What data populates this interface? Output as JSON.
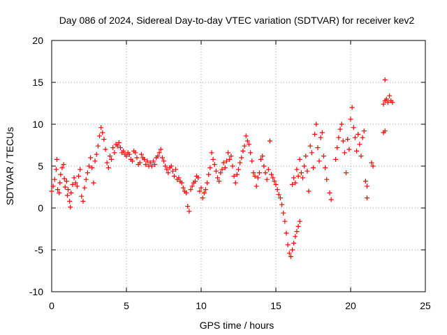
{
  "chart_data": {
    "type": "scatter",
    "title": "Day 086 of 2024, Sidereal Day-to-day VTEC variation (SDTVAR) for receiver kev2",
    "xlabel": "GPS time / hours",
    "ylabel": "SDTVAR / TECUs",
    "xlim": [
      0,
      25
    ],
    "ylim": [
      -10,
      20
    ],
    "x_ticks": [
      0,
      5,
      10,
      15,
      20,
      25
    ],
    "y_ticks": [
      -10,
      -5,
      0,
      5,
      10,
      15,
      20
    ],
    "x_tick_labels": [
      "0",
      "5",
      "10",
      "15",
      "20",
      "25"
    ],
    "y_tick_labels": [
      "-10",
      "-5",
      "0",
      "5",
      "10",
      "15",
      "20"
    ],
    "grid": true,
    "marker": "+",
    "series": [
      {
        "name": "SDTVAR",
        "color": "#ff0000",
        "points": [
          [
            0.0,
            2.0
          ],
          [
            0.1,
            2.6
          ],
          [
            0.2,
            3.4
          ],
          [
            0.3,
            4.6
          ],
          [
            0.35,
            5.8
          ],
          [
            0.4,
            2.2
          ],
          [
            0.5,
            1.8
          ],
          [
            0.55,
            3.0
          ],
          [
            0.6,
            4.0
          ],
          [
            0.7,
            4.8
          ],
          [
            0.8,
            5.2
          ],
          [
            0.85,
            3.5
          ],
          [
            0.9,
            2.5
          ],
          [
            1.0,
            3.2
          ],
          [
            1.05,
            1.5
          ],
          [
            1.1,
            2.2
          ],
          [
            1.2,
            0.8
          ],
          [
            1.25,
            0.1
          ],
          [
            1.3,
            1.8
          ],
          [
            1.4,
            2.8
          ],
          [
            1.5,
            3.6
          ],
          [
            1.6,
            3.0
          ],
          [
            1.7,
            2.6
          ],
          [
            1.8,
            3.8
          ],
          [
            1.9,
            4.6
          ],
          [
            2.0,
            1.4
          ],
          [
            2.1,
            0.8
          ],
          [
            2.2,
            2.4
          ],
          [
            2.3,
            3.4
          ],
          [
            2.4,
            4.2
          ],
          [
            2.5,
            5.0
          ],
          [
            2.6,
            6.0
          ],
          [
            2.7,
            4.8
          ],
          [
            2.8,
            3.0
          ],
          [
            2.9,
            5.6
          ],
          [
            3.0,
            6.4
          ],
          [
            3.1,
            7.4
          ],
          [
            3.2,
            8.6
          ],
          [
            3.3,
            9.6
          ],
          [
            3.4,
            9.0
          ],
          [
            3.5,
            8.2
          ],
          [
            3.6,
            7.0
          ],
          [
            3.7,
            5.4
          ],
          [
            3.8,
            4.8
          ],
          [
            3.9,
            6.2
          ],
          [
            4.0,
            5.8
          ],
          [
            4.1,
            7.2
          ],
          [
            4.2,
            6.6
          ],
          [
            4.3,
            7.6
          ],
          [
            4.4,
            7.4
          ],
          [
            4.5,
            7.8
          ],
          [
            4.6,
            7.2
          ],
          [
            4.7,
            6.6
          ],
          [
            4.8,
            6.8
          ],
          [
            4.9,
            6.4
          ],
          [
            5.0,
            6.2
          ],
          [
            5.1,
            6.6
          ],
          [
            5.2,
            6.4
          ],
          [
            5.3,
            5.8
          ],
          [
            5.4,
            5.6
          ],
          [
            5.5,
            6.8
          ],
          [
            5.6,
            6.6
          ],
          [
            5.7,
            6.0
          ],
          [
            5.8,
            5.2
          ],
          [
            5.9,
            5.4
          ],
          [
            6.0,
            6.4
          ],
          [
            6.1,
            6.0
          ],
          [
            6.2,
            5.8
          ],
          [
            6.3,
            5.2
          ],
          [
            6.4,
            5.6
          ],
          [
            6.5,
            5.0
          ],
          [
            6.6,
            5.4
          ],
          [
            6.7,
            5.0
          ],
          [
            6.8,
            5.6
          ],
          [
            6.9,
            5.2
          ],
          [
            7.0,
            6.0
          ],
          [
            7.1,
            6.2
          ],
          [
            7.2,
            6.6
          ],
          [
            7.3,
            7.0
          ],
          [
            7.4,
            6.0
          ],
          [
            7.5,
            5.6
          ],
          [
            7.6,
            5.0
          ],
          [
            7.7,
            4.6
          ],
          [
            7.8,
            4.2
          ],
          [
            7.9,
            4.8
          ],
          [
            8.0,
            5.0
          ],
          [
            8.1,
            4.4
          ],
          [
            8.2,
            3.8
          ],
          [
            8.3,
            4.6
          ],
          [
            8.4,
            3.4
          ],
          [
            8.5,
            3.6
          ],
          [
            8.6,
            3.2
          ],
          [
            8.7,
            3.0
          ],
          [
            8.8,
            2.4
          ],
          [
            8.9,
            2.0
          ],
          [
            9.0,
            1.8
          ],
          [
            9.1,
            0.2
          ],
          [
            9.2,
            -0.4
          ],
          [
            9.3,
            2.2
          ],
          [
            9.4,
            2.6
          ],
          [
            9.5,
            3.0
          ],
          [
            9.6,
            3.2
          ],
          [
            9.7,
            3.8
          ],
          [
            9.8,
            3.6
          ],
          [
            9.9,
            2.0
          ],
          [
            10.0,
            2.4
          ],
          [
            10.1,
            1.2
          ],
          [
            10.2,
            1.8
          ],
          [
            10.3,
            2.2
          ],
          [
            10.4,
            3.0
          ],
          [
            10.5,
            4.0
          ],
          [
            10.6,
            4.8
          ],
          [
            10.7,
            6.6
          ],
          [
            10.8,
            5.8
          ],
          [
            10.9,
            5.2
          ],
          [
            11.0,
            4.4
          ],
          [
            11.1,
            3.6
          ],
          [
            11.2,
            3.2
          ],
          [
            11.3,
            4.2
          ],
          [
            11.4,
            4.6
          ],
          [
            11.5,
            5.4
          ],
          [
            11.6,
            4.8
          ],
          [
            11.7,
            5.6
          ],
          [
            11.8,
            6.6
          ],
          [
            11.9,
            5.8
          ],
          [
            12.0,
            6.2
          ],
          [
            12.1,
            5.0
          ],
          [
            12.2,
            3.8
          ],
          [
            12.3,
            3.0
          ],
          [
            12.4,
            4.0
          ],
          [
            12.5,
            4.6
          ],
          [
            12.6,
            5.4
          ],
          [
            12.7,
            6.0
          ],
          [
            12.8,
            6.8
          ],
          [
            12.9,
            7.4
          ],
          [
            13.0,
            8.6
          ],
          [
            13.1,
            8.0
          ],
          [
            13.2,
            7.6
          ],
          [
            13.3,
            6.6
          ],
          [
            13.4,
            5.6
          ],
          [
            13.5,
            4.2
          ],
          [
            13.6,
            3.8
          ],
          [
            13.7,
            2.6
          ],
          [
            13.8,
            3.6
          ],
          [
            13.9,
            4.2
          ],
          [
            14.0,
            5.8
          ],
          [
            14.1,
            6.2
          ],
          [
            14.2,
            5.0
          ],
          [
            14.3,
            4.2
          ],
          [
            14.4,
            3.4
          ],
          [
            14.5,
            4.6
          ],
          [
            14.6,
            8.0
          ],
          [
            14.7,
            4.0
          ],
          [
            14.8,
            3.6
          ],
          [
            14.9,
            3.2
          ],
          [
            15.0,
            2.8
          ],
          [
            15.1,
            2.2
          ],
          [
            15.2,
            1.6
          ],
          [
            15.3,
            1.2
          ],
          [
            15.4,
            0.4
          ],
          [
            15.5,
            -0.6
          ],
          [
            15.6,
            -1.6
          ],
          [
            15.7,
            -3.0
          ],
          [
            15.8,
            -4.4
          ],
          [
            15.9,
            -5.4
          ],
          [
            16.0,
            -5.8
          ],
          [
            16.1,
            -5.0
          ],
          [
            16.2,
            -4.2
          ],
          [
            16.3,
            -3.4
          ],
          [
            16.4,
            -2.8
          ],
          [
            16.5,
            -2.2
          ],
          [
            16.6,
            -1.6
          ],
          [
            16.1,
            2.8
          ],
          [
            16.2,
            3.6
          ],
          [
            16.3,
            3.0
          ],
          [
            16.4,
            4.6
          ],
          [
            16.5,
            3.8
          ],
          [
            16.6,
            5.8
          ],
          [
            16.7,
            4.2
          ],
          [
            16.8,
            3.6
          ],
          [
            16.9,
            5.0
          ],
          [
            17.0,
            6.2
          ],
          [
            17.1,
            4.4
          ],
          [
            17.2,
            2.0
          ],
          [
            17.3,
            7.4
          ],
          [
            17.4,
            6.6
          ],
          [
            17.5,
            4.8
          ],
          [
            17.6,
            8.8
          ],
          [
            17.7,
            10.0
          ],
          [
            17.8,
            7.2
          ],
          [
            17.9,
            5.6
          ],
          [
            18.0,
            8.4
          ],
          [
            18.1,
            9.0
          ],
          [
            18.2,
            6.2
          ],
          [
            18.3,
            4.8
          ],
          [
            18.4,
            3.4
          ],
          [
            18.6,
            1.8
          ],
          [
            18.7,
            1.0
          ],
          [
            19.0,
            5.8
          ],
          [
            19.1,
            7.2
          ],
          [
            19.2,
            8.4
          ],
          [
            19.3,
            9.4
          ],
          [
            19.4,
            10.0
          ],
          [
            19.5,
            8.0
          ],
          [
            19.6,
            6.6
          ],
          [
            19.7,
            4.2
          ],
          [
            19.8,
            8.2
          ],
          [
            19.9,
            7.0
          ],
          [
            20.0,
            10.6
          ],
          [
            20.1,
            12.0
          ],
          [
            20.2,
            9.6
          ],
          [
            20.3,
            8.4
          ],
          [
            20.4,
            6.8
          ],
          [
            20.5,
            8.8
          ],
          [
            20.6,
            7.6
          ],
          [
            20.7,
            6.2
          ],
          [
            20.8,
            8.4
          ],
          [
            20.9,
            9.2
          ],
          [
            21.0,
            3.2
          ],
          [
            21.1,
            2.6
          ],
          [
            21.1,
            1.2
          ],
          [
            21.4,
            5.4
          ],
          [
            21.5,
            5.0
          ],
          [
            22.2,
            9.0
          ],
          [
            22.3,
            9.2
          ],
          [
            22.2,
            12.4
          ],
          [
            22.3,
            12.8
          ],
          [
            22.4,
            13.0
          ],
          [
            22.5,
            12.6
          ],
          [
            22.6,
            13.4
          ],
          [
            22.7,
            12.8
          ],
          [
            22.8,
            12.6
          ],
          [
            22.3,
            15.3
          ]
        ]
      }
    ]
  }
}
